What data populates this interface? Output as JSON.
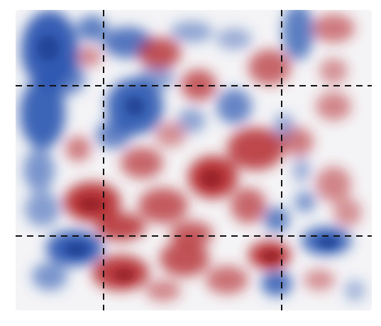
{
  "figure": {
    "kind": "diverging-field-map",
    "colormap": {
      "negative": "#2a55b0",
      "neutral": "#ffffff",
      "positive": "#b42a2f"
    },
    "frame_color": "#f2f2f4",
    "guide_line": {
      "color": "#111111",
      "style": "dashed"
    },
    "guide_lines_vertical_count": 2,
    "guide_lines_horizontal_count": 2
  }
}
